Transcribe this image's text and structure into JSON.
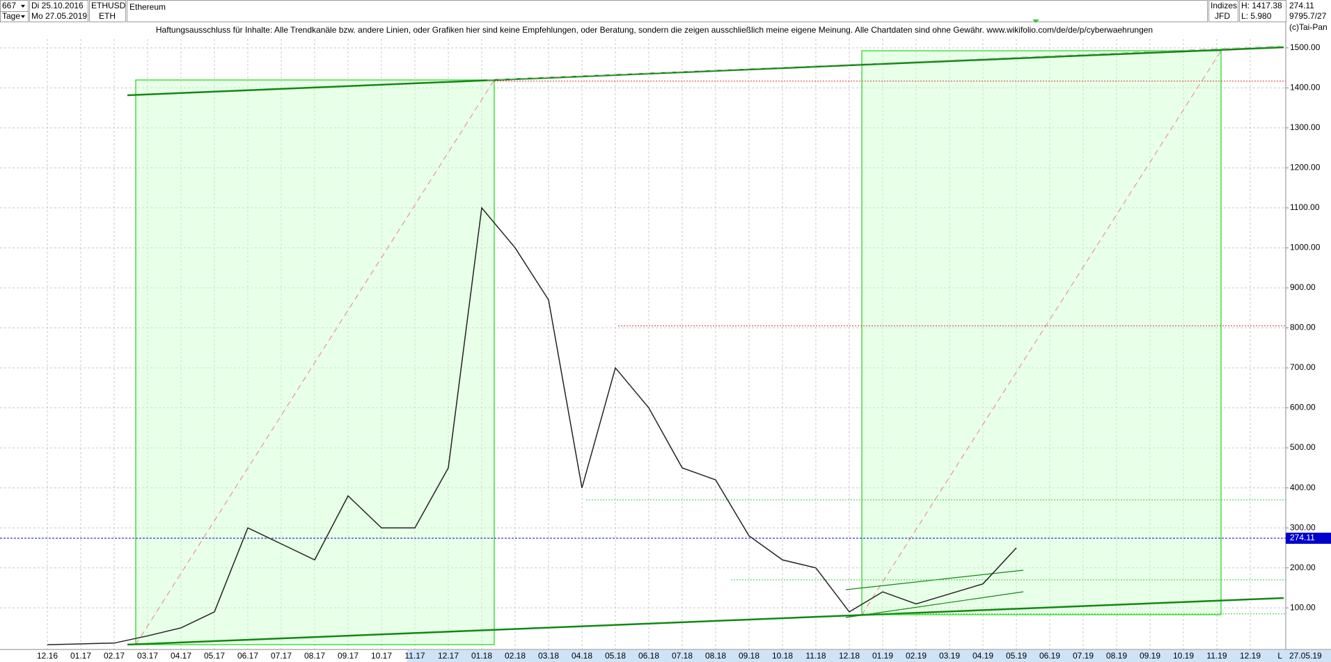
{
  "header": {
    "period": "667",
    "start_date": "Di 25.10.2016",
    "interval": "Tage",
    "end_date": "Mo 27.05.2019",
    "symbol": "ETHUSD",
    "short": "ETH",
    "name": "Ethereum",
    "group": "Indizes",
    "source": "JFD",
    "high": "H: 1417.38",
    "low": "L: 5.980",
    "count": "9795.7/27",
    "copyright": "(c)Tai-Pan",
    "disclaimer": "Haftungsausschluss für Inhalte: Alle Trendkanäle bzw. andere Linien, oder Grafiken hier sind keine Empfehlungen, oder Beratung, sondern die zeigen ausschließlich meine eigene Meinung. Alle Chartdaten sind ohne Gewähr.  www.wikifolio.com/de/de/p/cyberwaehrungen",
    "corner": "L",
    "cursor_date": "27.05.19"
  },
  "chart_data": {
    "type": "line",
    "color": "#222222",
    "categories": [
      "12.16",
      "01.17",
      "02.17",
      "03.17",
      "04.17",
      "05.17",
      "06.17",
      "07.17",
      "08.17",
      "09.17",
      "10.17",
      "11.17",
      "12.17",
      "01.18",
      "02.18",
      "03.18",
      "04.18",
      "05.18",
      "06.18",
      "07.18",
      "08.18",
      "09.18",
      "10.18",
      "11.18",
      "12.18",
      "01.19",
      "02.19",
      "03.19",
      "04.19",
      "05.19",
      "06.19",
      "07.19",
      "08.19",
      "09.19",
      "10.19",
      "11.19",
      "12.19"
    ],
    "values": [
      8,
      10,
      12,
      30,
      50,
      90,
      300,
      260,
      220,
      380,
      300,
      300,
      450,
      1100,
      1000,
      870,
      400,
      700,
      600,
      450,
      420,
      280,
      220,
      200,
      90,
      140,
      110,
      135,
      160,
      250,
      null,
      null,
      null,
      null,
      null,
      null,
      null
    ],
    "last": 274.11,
    "last_color": "#0000cc",
    "levels": [
      {
        "value": 1417,
        "color": "#e03030"
      },
      {
        "value": 805,
        "color": "#e03030"
      },
      {
        "value": 370,
        "color": "#33cc33"
      },
      {
        "value": 170,
        "color": "#33cc33"
      },
      {
        "value": 85,
        "color": "#33cc33"
      }
    ],
    "ylim": [
      -4,
      1564
    ],
    "yticks": [
      {
        "value": 100,
        "label": "100.00"
      },
      {
        "value": 200,
        "label": "200.00"
      },
      {
        "value": 300,
        "label": "300.00"
      },
      {
        "value": 400,
        "label": "400.00"
      },
      {
        "value": 500,
        "label": "500.00"
      },
      {
        "value": 600,
        "label": "600.00"
      },
      {
        "value": 700,
        "label": "700.00"
      },
      {
        "value": 800,
        "label": "800.00"
      },
      {
        "value": 900,
        "label": "900.00"
      },
      {
        "value": 1000,
        "label": "1000.00"
      },
      {
        "value": 1100,
        "label": "1100.00"
      },
      {
        "value": 1200,
        "label": "1200.00"
      },
      {
        "value": 1300,
        "label": "1300.00"
      },
      {
        "value": 1400,
        "label": "1400.00"
      },
      {
        "value": 1500,
        "label": "1500.00"
      }
    ],
    "grid": true
  }
}
